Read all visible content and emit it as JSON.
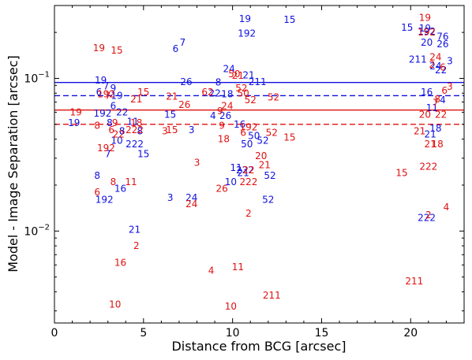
{
  "chart_data": {
    "type": "scatter",
    "title": "",
    "xlabel": "Distance from BCG [arcsec]",
    "ylabel": "Model - Image Separation [arcsec]",
    "xlim": [
      0,
      23
    ],
    "ylim": [
      0.0025,
      0.3
    ],
    "yscale": "log",
    "xticks": [
      0,
      5,
      10,
      15,
      20
    ],
    "yticks": [
      {
        "value": 0.1,
        "label": "10",
        "exp": "−1"
      },
      {
        "value": 0.01,
        "label": "10",
        "exp": "−2"
      }
    ],
    "grid": false,
    "legend": "none",
    "colors": {
      "blue": "#1010e0",
      "red": "#e01010"
    },
    "reference_lines": [
      {
        "color": "blue",
        "style": "solid",
        "y": 0.094
      },
      {
        "color": "blue",
        "style": "dashed",
        "y": 0.077
      },
      {
        "color": "red",
        "style": "solid",
        "y": 0.062
      },
      {
        "color": "red",
        "style": "dashed",
        "y": 0.05
      }
    ],
    "series": [
      {
        "color": "blue",
        "points": [
          {
            "label": "19",
            "x": 10.7,
            "y": 0.245
          },
          {
            "label": "15",
            "x": 13.2,
            "y": 0.242
          },
          {
            "label": "192",
            "x": 10.8,
            "y": 0.197
          },
          {
            "label": "7",
            "x": 7.2,
            "y": 0.172
          },
          {
            "label": "6",
            "x": 6.8,
            "y": 0.156
          },
          {
            "label": "24",
            "x": 9.8,
            "y": 0.115
          },
          {
            "label": "26",
            "x": 7.4,
            "y": 0.095
          },
          {
            "label": "8",
            "x": 9.2,
            "y": 0.094
          },
          {
            "label": "21",
            "x": 10.9,
            "y": 0.105
          },
          {
            "label": "211",
            "x": 11.4,
            "y": 0.095
          },
          {
            "label": "22",
            "x": 9.0,
            "y": 0.08
          },
          {
            "label": "18",
            "x": 9.7,
            "y": 0.079
          },
          {
            "label": "19",
            "x": 2.6,
            "y": 0.097
          },
          {
            "label": "7",
            "x": 2.9,
            "y": 0.089
          },
          {
            "label": "9",
            "x": 3.3,
            "y": 0.086
          },
          {
            "label": "6",
            "x": 2.5,
            "y": 0.081
          },
          {
            "label": "19",
            "x": 3.5,
            "y": 0.077
          },
          {
            "label": "6",
            "x": 3.3,
            "y": 0.066
          },
          {
            "label": "192",
            "x": 2.7,
            "y": 0.059
          },
          {
            "label": "22",
            "x": 3.8,
            "y": 0.06
          },
          {
            "label": "19",
            "x": 1.1,
            "y": 0.051
          },
          {
            "label": "8",
            "x": 3.1,
            "y": 0.051
          },
          {
            "label": "11",
            "x": 4.4,
            "y": 0.052
          },
          {
            "label": "8",
            "x": 3.8,
            "y": 0.045
          },
          {
            "label": "8",
            "x": 4.8,
            "y": 0.045
          },
          {
            "label": "15",
            "x": 6.5,
            "y": 0.058
          },
          {
            "label": "3",
            "x": 7.7,
            "y": 0.046
          },
          {
            "label": "4",
            "x": 8.9,
            "y": 0.057
          },
          {
            "label": "26",
            "x": 9.6,
            "y": 0.057
          },
          {
            "label": "16",
            "x": 10.4,
            "y": 0.05
          },
          {
            "label": "50",
            "x": 11.2,
            "y": 0.042
          },
          {
            "label": "52",
            "x": 11.7,
            "y": 0.039
          },
          {
            "label": "50",
            "x": 10.8,
            "y": 0.037
          },
          {
            "label": "10",
            "x": 3.5,
            "y": 0.039
          },
          {
            "label": "222",
            "x": 4.5,
            "y": 0.037
          },
          {
            "label": "7",
            "x": 3.0,
            "y": 0.032
          },
          {
            "label": "15",
            "x": 5.0,
            "y": 0.032
          },
          {
            "label": "8",
            "x": 2.4,
            "y": 0.023
          },
          {
            "label": "16",
            "x": 3.7,
            "y": 0.019
          },
          {
            "label": "192",
            "x": 2.8,
            "y": 0.016
          },
          {
            "label": "3",
            "x": 6.5,
            "y": 0.0165
          },
          {
            "label": "24",
            "x": 7.7,
            "y": 0.0165
          },
          {
            "label": "11",
            "x": 10.2,
            "y": 0.026
          },
          {
            "label": "222",
            "x": 10.7,
            "y": 0.025
          },
          {
            "label": "21",
            "x": 10.6,
            "y": 0.024
          },
          {
            "label": "52",
            "x": 12.1,
            "y": 0.023
          },
          {
            "label": "10",
            "x": 9.9,
            "y": 0.021
          },
          {
            "label": "52",
            "x": 12.0,
            "y": 0.016
          },
          {
            "label": "21",
            "x": 4.5,
            "y": 0.0102
          },
          {
            "label": "15",
            "x": 19.8,
            "y": 0.215
          },
          {
            "label": "19",
            "x": 20.8,
            "y": 0.212
          },
          {
            "label": "192",
            "x": 20.9,
            "y": 0.203
          },
          {
            "label": "76",
            "x": 21.8,
            "y": 0.188
          },
          {
            "label": "20",
            "x": 20.9,
            "y": 0.172
          },
          {
            "label": "26",
            "x": 21.8,
            "y": 0.168
          },
          {
            "label": "211",
            "x": 20.4,
            "y": 0.133
          },
          {
            "label": "3",
            "x": 22.2,
            "y": 0.13
          },
          {
            "label": "24",
            "x": 21.4,
            "y": 0.12
          },
          {
            "label": "22",
            "x": 21.7,
            "y": 0.113
          },
          {
            "label": "16",
            "x": 20.9,
            "y": 0.081
          },
          {
            "label": "4",
            "x": 21.8,
            "y": 0.072
          },
          {
            "label": "11",
            "x": 21.2,
            "y": 0.064
          },
          {
            "label": "18",
            "x": 21.4,
            "y": 0.047
          },
          {
            "label": "21",
            "x": 21.1,
            "y": 0.043
          },
          {
            "label": "222",
            "x": 20.9,
            "y": 0.0122
          }
        ]
      },
      {
        "color": "red",
        "points": [
          {
            "label": "19",
            "x": 20.8,
            "y": 0.25
          },
          {
            "label": "19",
            "x": 2.5,
            "y": 0.158
          },
          {
            "label": "15",
            "x": 3.5,
            "y": 0.152
          },
          {
            "label": "192",
            "x": 20.9,
            "y": 0.2
          },
          {
            "label": "24",
            "x": 21.4,
            "y": 0.138
          },
          {
            "label": "2",
            "x": 21.2,
            "y": 0.123
          },
          {
            "label": "6",
            "x": 21.8,
            "y": 0.118
          },
          {
            "label": "50",
            "x": 10.1,
            "y": 0.107
          },
          {
            "label": "21",
            "x": 10.3,
            "y": 0.104
          },
          {
            "label": "52",
            "x": 10.5,
            "y": 0.086
          },
          {
            "label": "62",
            "x": 8.6,
            "y": 0.081
          },
          {
            "label": "50",
            "x": 10.6,
            "y": 0.08
          },
          {
            "label": "52",
            "x": 12.3,
            "y": 0.075
          },
          {
            "label": "52",
            "x": 11.0,
            "y": 0.072
          },
          {
            "label": "24",
            "x": 9.7,
            "y": 0.066
          },
          {
            "label": "26",
            "x": 7.3,
            "y": 0.067
          },
          {
            "label": "21",
            "x": 4.6,
            "y": 0.073
          },
          {
            "label": "15",
            "x": 5.0,
            "y": 0.081
          },
          {
            "label": "21",
            "x": 6.6,
            "y": 0.076
          },
          {
            "label": "192",
            "x": 2.9,
            "y": 0.079
          },
          {
            "label": "7",
            "x": 3.0,
            "y": 0.077
          },
          {
            "label": "9",
            "x": 9.3,
            "y": 0.061
          },
          {
            "label": "19",
            "x": 1.2,
            "y": 0.06
          },
          {
            "label": "8",
            "x": 2.4,
            "y": 0.049
          },
          {
            "label": "9",
            "x": 3.4,
            "y": 0.051
          },
          {
            "label": "18",
            "x": 4.6,
            "y": 0.051
          },
          {
            "label": "222",
            "x": 4.5,
            "y": 0.046
          },
          {
            "label": "6",
            "x": 3.2,
            "y": 0.046
          },
          {
            "label": "22",
            "x": 3.6,
            "y": 0.043
          },
          {
            "label": "9",
            "x": 9.4,
            "y": 0.049
          },
          {
            "label": "192",
            "x": 10.9,
            "y": 0.048
          },
          {
            "label": "6",
            "x": 10.6,
            "y": 0.044
          },
          {
            "label": "3",
            "x": 6.2,
            "y": 0.045
          },
          {
            "label": "15",
            "x": 6.6,
            "y": 0.046
          },
          {
            "label": "18",
            "x": 9.5,
            "y": 0.04
          },
          {
            "label": "52",
            "x": 12.2,
            "y": 0.044
          },
          {
            "label": "15",
            "x": 13.2,
            "y": 0.041
          },
          {
            "label": "192",
            "x": 2.9,
            "y": 0.035
          },
          {
            "label": "20",
            "x": 11.6,
            "y": 0.031
          },
          {
            "label": "3",
            "x": 8.0,
            "y": 0.028
          },
          {
            "label": "21",
            "x": 11.8,
            "y": 0.027
          },
          {
            "label": "22",
            "x": 10.9,
            "y": 0.025
          },
          {
            "label": "222",
            "x": 10.9,
            "y": 0.021
          },
          {
            "label": "26",
            "x": 9.4,
            "y": 0.019
          },
          {
            "label": "6",
            "x": 2.4,
            "y": 0.018
          },
          {
            "label": "8",
            "x": 3.3,
            "y": 0.021
          },
          {
            "label": "11",
            "x": 4.3,
            "y": 0.021
          },
          {
            "label": "24",
            "x": 7.7,
            "y": 0.015
          },
          {
            "label": "2",
            "x": 10.9,
            "y": 0.013
          },
          {
            "label": "2",
            "x": 4.6,
            "y": 0.008
          },
          {
            "label": "16",
            "x": 3.7,
            "y": 0.0062
          },
          {
            "label": "4",
            "x": 8.8,
            "y": 0.0055
          },
          {
            "label": "11",
            "x": 10.3,
            "y": 0.0058
          },
          {
            "label": "211",
            "x": 12.2,
            "y": 0.0038
          },
          {
            "label": "10",
            "x": 3.4,
            "y": 0.0033
          },
          {
            "label": "10",
            "x": 9.9,
            "y": 0.0032
          },
          {
            "label": "3",
            "x": 22.2,
            "y": 0.088
          },
          {
            "label": "6",
            "x": 21.9,
            "y": 0.083
          },
          {
            "label": "8",
            "x": 21.5,
            "y": 0.073
          },
          {
            "label": "7",
            "x": 21.4,
            "y": 0.069
          },
          {
            "label": "20",
            "x": 20.8,
            "y": 0.058
          },
          {
            "label": "22",
            "x": 21.7,
            "y": 0.058
          },
          {
            "label": "21",
            "x": 20.5,
            "y": 0.045
          },
          {
            "label": "18",
            "x": 21.5,
            "y": 0.037
          },
          {
            "label": "21",
            "x": 21.1,
            "y": 0.037
          },
          {
            "label": "222",
            "x": 21.0,
            "y": 0.0265
          },
          {
            "label": "15",
            "x": 19.5,
            "y": 0.024
          },
          {
            "label": "4",
            "x": 22.0,
            "y": 0.0143
          },
          {
            "label": "2",
            "x": 21.0,
            "y": 0.0127
          },
          {
            "label": "211",
            "x": 20.2,
            "y": 0.0047
          }
        ]
      }
    ]
  }
}
